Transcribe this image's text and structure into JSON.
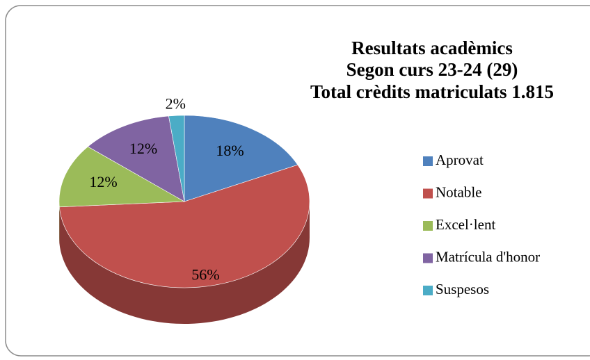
{
  "chart_data": {
    "type": "pie",
    "title": [
      "Resultats acadèmics",
      "Segon curs 23-24 (29)",
      "Total crèdits matriculats 1.815"
    ],
    "categories": [
      "Aprovat",
      "Notable",
      "Excel·lent",
      "Matrícula d'honor",
      "Suspesos"
    ],
    "values": [
      18,
      56,
      12,
      12,
      2
    ],
    "value_labels": [
      "18%",
      "56%",
      "12%",
      "12%",
      "2%"
    ],
    "colors": [
      "#4f81bd",
      "#c0504d",
      "#9bbb59",
      "#8064a2",
      "#4bacc6"
    ],
    "legend": "right"
  }
}
